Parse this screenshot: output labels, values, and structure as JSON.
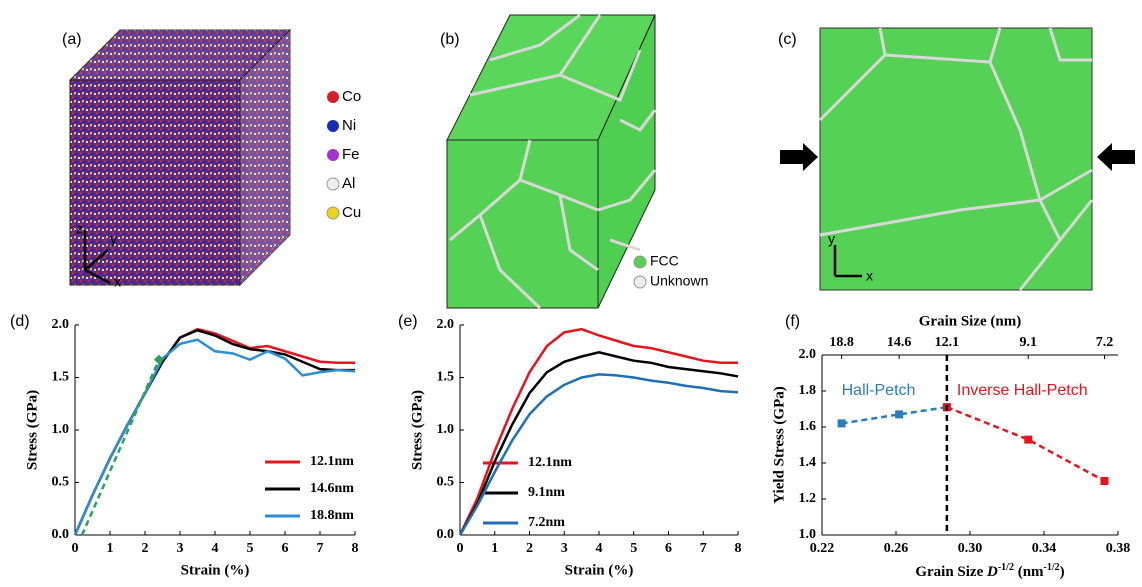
{
  "panels": {
    "a": {
      "label": "(a)",
      "elements": [
        "Co",
        "Ni",
        "Fe",
        "Al",
        "Cu"
      ],
      "axes": [
        "z",
        "y",
        "x"
      ]
    },
    "b": {
      "label": "(b)",
      "legend": [
        "FCC",
        "Unknown"
      ]
    },
    "c": {
      "label": "(c)",
      "axes": [
        "y",
        "x"
      ]
    }
  },
  "chart_data": [
    {
      "type": "line",
      "panel_label": "(d)",
      "xlabel": "Strain (%)",
      "ylabel": "Stress (GPa)",
      "x": [
        0,
        0.5,
        1,
        1.5,
        2,
        2.5,
        3,
        3.5,
        4,
        4.5,
        5,
        5.5,
        6,
        6.5,
        7,
        7.5,
        8
      ],
      "series": [
        {
          "name": "12.1nm",
          "color": "#e8141c",
          "values": [
            0,
            0.38,
            0.73,
            1.05,
            1.35,
            1.65,
            1.88,
            1.96,
            1.92,
            1.85,
            1.78,
            1.8,
            1.75,
            1.7,
            1.65,
            1.64,
            1.64
          ]
        },
        {
          "name": "14.6nm",
          "color": "#000000",
          "values": [
            0,
            0.38,
            0.73,
            1.05,
            1.35,
            1.65,
            1.88,
            1.95,
            1.9,
            1.82,
            1.77,
            1.75,
            1.72,
            1.65,
            1.58,
            1.57,
            1.57
          ]
        },
        {
          "name": "18.8nm",
          "color": "#2b8fd6",
          "values": [
            0,
            0.38,
            0.73,
            1.05,
            1.35,
            1.68,
            1.82,
            1.86,
            1.75,
            1.73,
            1.67,
            1.75,
            1.68,
            1.52,
            1.55,
            1.57,
            1.56
          ]
        }
      ],
      "fit_line": {
        "x": [
          0.2,
          2.4
        ],
        "values": [
          0,
          1.67
        ],
        "color": "#2ca05a"
      },
      "xlim": [
        0,
        8
      ],
      "xticks": [
        0,
        1,
        2,
        3,
        4,
        5,
        6,
        7,
        8
      ],
      "ylim": [
        0,
        2
      ],
      "yticks": [
        {
          "value": 0,
          "label": "0.0"
        },
        {
          "value": 0.5,
          "label": "0.5"
        },
        {
          "value": 1,
          "label": "1.0"
        },
        {
          "value": 1.5,
          "label": "1.5"
        },
        {
          "value": 2,
          "label": "2.0"
        }
      ],
      "legend": "lower right"
    },
    {
      "type": "line",
      "panel_label": "(e)",
      "xlabel": "Strain (%)",
      "ylabel": "Stress (GPa)",
      "x": [
        0,
        0.5,
        1,
        1.5,
        2,
        2.5,
        3,
        3.5,
        4,
        4.5,
        5,
        5.5,
        6,
        6.5,
        7,
        7.5,
        8
      ],
      "series": [
        {
          "name": "12.1nm",
          "color": "#e8141c",
          "values": [
            0,
            0.35,
            0.8,
            1.2,
            1.55,
            1.8,
            1.93,
            1.96,
            1.9,
            1.85,
            1.8,
            1.78,
            1.74,
            1.7,
            1.66,
            1.64,
            1.64
          ]
        },
        {
          "name": "9.1nm",
          "color": "#000000",
          "values": [
            0,
            0.3,
            0.7,
            1.05,
            1.35,
            1.55,
            1.65,
            1.7,
            1.74,
            1.7,
            1.66,
            1.64,
            1.6,
            1.58,
            1.56,
            1.54,
            1.51
          ]
        },
        {
          "name": "7.2nm",
          "color": "#1f6fb5",
          "values": [
            0,
            0.28,
            0.6,
            0.9,
            1.15,
            1.32,
            1.43,
            1.5,
            1.53,
            1.52,
            1.5,
            1.47,
            1.45,
            1.42,
            1.4,
            1.37,
            1.36
          ]
        }
      ],
      "xlim": [
        0,
        8
      ],
      "xticks": [
        0,
        1,
        2,
        3,
        4,
        5,
        6,
        7,
        8
      ],
      "ylim": [
        0,
        2
      ],
      "yticks": [
        {
          "value": 0,
          "label": "0.0"
        },
        {
          "value": 0.5,
          "label": "0.5"
        },
        {
          "value": 1,
          "label": "1.0"
        },
        {
          "value": 1.5,
          "label": "1.5"
        },
        {
          "value": 2,
          "label": "2.0"
        }
      ],
      "legend": "lower right"
    },
    {
      "type": "line",
      "panel_label": "(f)",
      "x2label": "Grain  Size (nm)",
      "ylabel": "Yield Stress (GPa)",
      "xlabel": [
        {
          "text": "Grain  Size "
        },
        {
          "text": "D",
          "italic": true
        },
        {
          "text": "-1/2",
          "sup": true
        },
        {
          "text": " (nm"
        },
        {
          "text": "-1/2",
          "sup": true
        },
        {
          "text": ")"
        }
      ],
      "series": [
        {
          "name": "Hall-Petch",
          "color": "#2b7bbf",
          "x": [
            0.2306,
            0.2617,
            0.2875
          ],
          "values": [
            1.62,
            1.67,
            1.71
          ]
        },
        {
          "name": "Inverse Hall-Petch",
          "color": "#e8141c",
          "x": [
            0.2875,
            0.3315,
            0.3727
          ],
          "values": [
            1.71,
            1.53,
            1.3
          ]
        }
      ],
      "markers": true,
      "dashed": true,
      "vline": 0.2875,
      "xlim": [
        0.22,
        0.38
      ],
      "xticks": [
        0.22,
        0.26,
        {
          "value": 0.3,
          "label": "0.30"
        },
        0.34,
        0.38
      ],
      "x2ticks": [
        {
          "value": 0.2306,
          "label": "18.8"
        },
        {
          "value": 0.2617,
          "label": "14.6"
        },
        {
          "value": 0.2875,
          "label": "12.1"
        },
        {
          "value": 0.3315,
          "label": "9.1"
        },
        {
          "value": 0.3727,
          "label": "7.2"
        }
      ],
      "ylim": [
        1,
        2
      ],
      "yticks": [
        {
          "value": 1,
          "label": "1.0"
        },
        {
          "value": 1.2,
          "label": "1.2"
        },
        {
          "value": 1.4,
          "label": "1.4"
        },
        {
          "value": 1.6,
          "label": "1.6"
        },
        {
          "value": 1.8,
          "label": "1.8"
        },
        {
          "value": 2,
          "label": "2.0"
        }
      ],
      "legend": "annotations"
    }
  ]
}
